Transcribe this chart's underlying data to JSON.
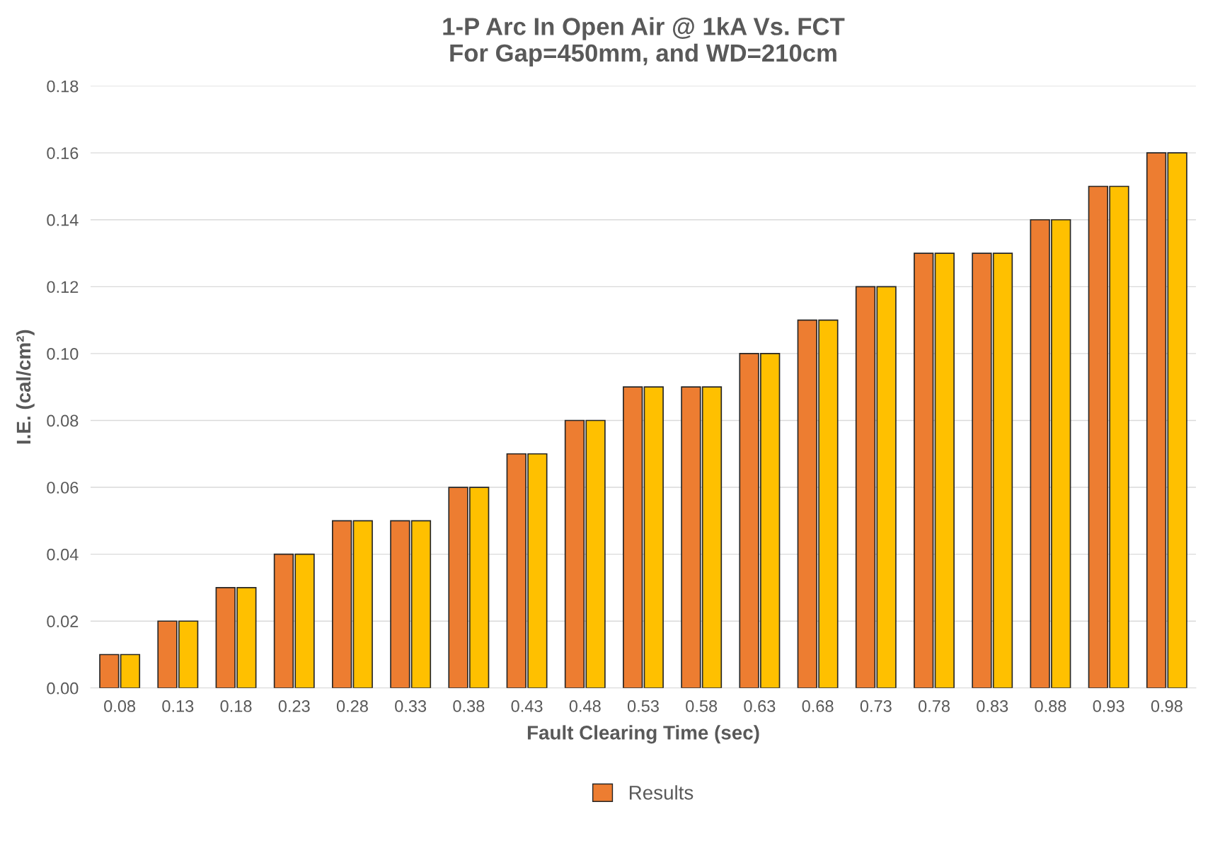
{
  "chart_data": {
    "type": "bar",
    "title": "1-P Arc In Open Air @ 1kA Vs. FCT\nFor Gap=450mm, and WD=210cm",
    "xlabel": "Fault Clearing Time (sec)",
    "ylabel": "I.E. (cal/cm²)",
    "categories": [
      "0.08",
      "0.13",
      "0.18",
      "0.23",
      "0.28",
      "0.33",
      "0.38",
      "0.43",
      "0.48",
      "0.53",
      "0.58",
      "0.63",
      "0.68",
      "0.73",
      "0.78",
      "0.83",
      "0.88",
      "0.93",
      "0.98"
    ],
    "series": [
      {
        "name": "Results",
        "color": "#ed7d31",
        "values": [
          0.01,
          0.02,
          0.03,
          0.04,
          0.05,
          0.05,
          0.06,
          0.07,
          0.08,
          0.09,
          0.09,
          0.1,
          0.11,
          0.12,
          0.13,
          0.13,
          0.14,
          0.15,
          0.16
        ]
      },
      {
        "color": "#ffc000",
        "values": [
          0.01,
          0.02,
          0.03,
          0.04,
          0.05,
          0.05,
          0.06,
          0.07,
          0.08,
          0.09,
          0.09,
          0.1,
          0.11,
          0.12,
          0.13,
          0.13,
          0.14,
          0.15,
          0.16
        ]
      }
    ],
    "ylim": [
      0,
      0.18
    ],
    "yticks": [
      {
        "value": 0,
        "label": "0.00"
      },
      {
        "value": 0.02,
        "label": "0.02"
      },
      {
        "value": 0.04,
        "label": "0.04"
      },
      {
        "value": 0.06,
        "label": "0.06"
      },
      {
        "value": 0.08,
        "label": "0.08"
      },
      {
        "value": 0.1,
        "label": "0.10"
      },
      {
        "value": 0.12,
        "label": "0.12"
      },
      {
        "value": 0.14,
        "label": "0.14"
      },
      {
        "value": 0.16,
        "label": "0.16"
      },
      {
        "value": 0.18,
        "label": "0.18"
      }
    ],
    "grid": "y",
    "legend": "bottom"
  }
}
